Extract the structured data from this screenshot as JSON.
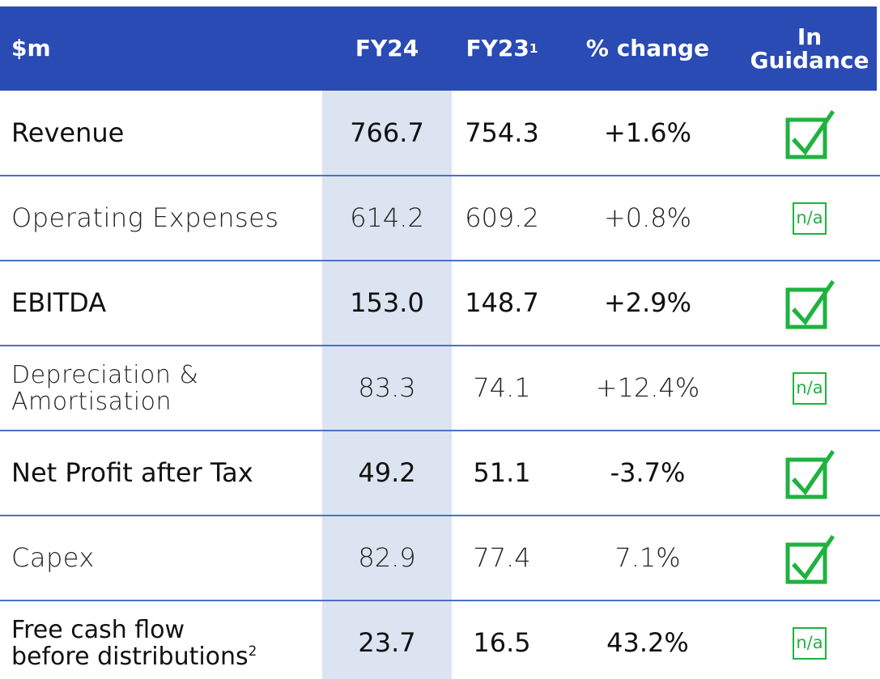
{
  "header": {
    "label": "$m",
    "fy24": "FY24",
    "fy23": "FY23",
    "fy23_footnote": "1",
    "change": "% change",
    "guidance": "In\nGuidance"
  },
  "rows": [
    {
      "label": "Revenue",
      "fy24": "766.7",
      "fy23": "754.3",
      "change": "+1.6%",
      "guidance": true,
      "emphasis": true
    },
    {
      "label": "Operating Expenses",
      "fy24": "614.2",
      "fy23": "609.2",
      "change": "+0.8%",
      "guidance": "n/a",
      "emphasis": false
    },
    {
      "label": "EBITDA",
      "fy24": "153.0",
      "fy23": "148.7",
      "change": "+2.9%",
      "guidance": true,
      "emphasis": true
    },
    {
      "label": "Depreciation &\nAmortisation",
      "fy24": "83.3",
      "fy23": "74.1",
      "change": "+12.4%",
      "guidance": "n/a",
      "emphasis": false
    },
    {
      "label": "Net Profit after Tax",
      "fy24": "49.2",
      "fy23": "51.1",
      "change": "-3.7%",
      "guidance": true,
      "emphasis": true
    },
    {
      "label": "Capex",
      "fy24": "82.9",
      "fy23": "77.4",
      "change": "7.1%",
      "guidance": true,
      "emphasis": false
    },
    {
      "label": "Free cash flow\nbefore distributions",
      "footnote": "2",
      "fy24": "23.7",
      "fy23": "16.5",
      "change": "43.2%",
      "guidance": "n/a",
      "emphasis": true
    }
  ]
}
